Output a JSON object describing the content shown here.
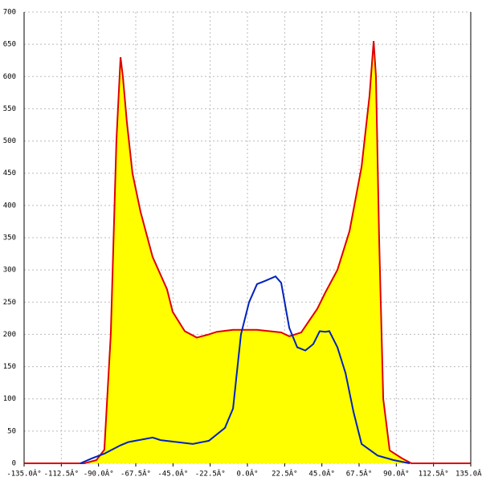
{
  "chart_data": {
    "type": "area",
    "xlim": [
      -135,
      135
    ],
    "xticks": [
      {
        "value": -135,
        "label": "-135.0Â°"
      },
      {
        "value": -112.5,
        "label": "-112.5Â°"
      },
      {
        "value": -90,
        "label": "-90.0Â°"
      },
      {
        "value": -67.5,
        "label": "-67.5Â°"
      },
      {
        "value": -45,
        "label": "-45.0Â°"
      },
      {
        "value": -22.5,
        "label": "-22.5Â°"
      },
      {
        "value": 0,
        "label": "0.0Â°"
      },
      {
        "value": 22.5,
        "label": "22.5Â°"
      },
      {
        "value": 45,
        "label": "45.0Â°"
      },
      {
        "value": 67.5,
        "label": "67.5Â°"
      },
      {
        "value": 90,
        "label": "90.0Â°"
      },
      {
        "value": 112.5,
        "label": "112.5Â°"
      },
      {
        "value": 135,
        "label": "135.0Â°"
      }
    ],
    "ylim": [
      0,
      700
    ],
    "yticks": [
      0,
      50,
      100,
      150,
      200,
      250,
      300,
      350,
      400,
      450,
      500,
      550,
      600,
      650,
      700
    ],
    "grid": true,
    "series": [
      {
        "color": "#e00000",
        "fill": "#ffff00",
        "x": [
          -135,
          -98.6,
          -91.3,
          -86.5,
          -82.6,
          -79.2,
          -76.7,
          -75.3,
          -72.9,
          -69.5,
          -64.6,
          -57.3,
          -48.6,
          -45.2,
          -37.9,
          -30.6,
          -23.3,
          -18.5,
          -8.7,
          5.8,
          20.4,
          25.3,
          32.5,
          42.3,
          47.1,
          54.4,
          61.7,
          69,
          73.8,
          76.3,
          77.7,
          79.6,
          82.1,
          86,
          93.3,
          99.1,
          135
        ],
        "values": [
          0,
          0,
          5,
          21,
          200,
          500,
          630,
          600,
          530,
          450,
          390,
          320,
          270,
          235,
          205,
          195,
          200,
          204,
          207,
          207,
          203,
          197,
          203,
          240,
          265,
          300,
          360,
          460,
          570,
          655,
          600,
          350,
          100,
          20,
          8,
          0,
          0
        ]
      },
      {
        "color": "#0022bb",
        "x": [
          -101,
          -93.7,
          -86.5,
          -76.7,
          -71.9,
          -57.3,
          -52.5,
          -33,
          -23.3,
          -13.6,
          -8.7,
          -3.9,
          1,
          5.8,
          10.7,
          17,
          20.4,
          25.3,
          30.1,
          35,
          39.8,
          43.7,
          47.1,
          49.5,
          54.4,
          59.3,
          64.1,
          69,
          78.7,
          88.4,
          98.1
        ],
        "values": [
          0,
          8,
          15,
          28,
          33,
          40,
          36,
          30,
          35,
          55,
          85,
          200,
          250,
          278,
          283,
          290,
          280,
          210,
          180,
          175,
          185,
          205,
          204,
          205,
          180,
          140,
          80,
          30,
          12,
          5,
          0
        ]
      }
    ]
  }
}
